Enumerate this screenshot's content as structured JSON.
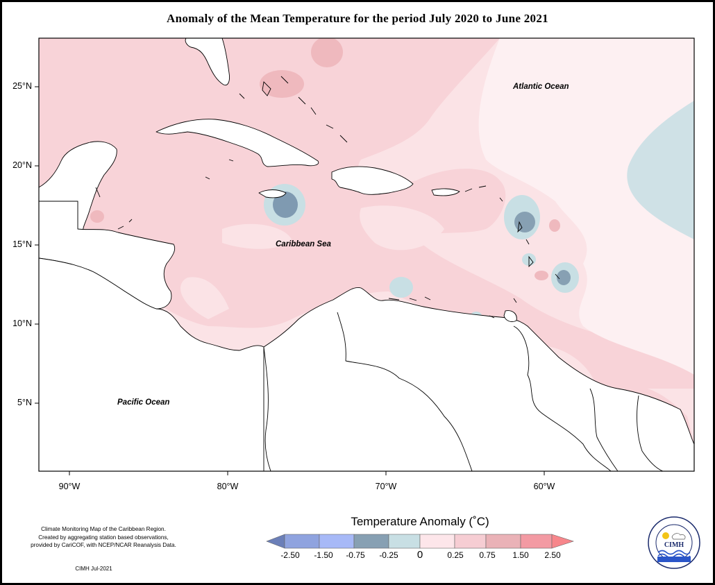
{
  "title": "Anomaly of the Mean Temperature for the period July 2020 to June 2021",
  "map": {
    "latitude_labels": [
      "25°N",
      "20°N",
      "15°N",
      "10°N",
      "5°N"
    ],
    "longitude_labels": [
      "90°W",
      "80°W",
      "70°W",
      "60°W"
    ],
    "regions": {
      "atlantic": "Atlantic Ocean",
      "caribbean": "Caribbean Sea",
      "pacific": "Pacific Ocean"
    }
  },
  "legend": {
    "title": "Temperature Anomaly (˚C)",
    "tick_labels": [
      "-2.50",
      "-1.50",
      "-0.75",
      "-0.25",
      "0",
      "0.25",
      "0.75",
      "1.50",
      "2.50"
    ],
    "colors": [
      "#6b7fb8",
      "#8fa3df",
      "#a7b9f7",
      "#87a0b3",
      "#c8dfe4",
      "#fde6ea",
      "#f6cdd3",
      "#eab2b7",
      "#f39aa3",
      "#f7868b"
    ]
  },
  "footnote": {
    "lines": [
      "Climate Monitoring Map of the Caribbean Region.",
      "Created by aggregating station based observations,",
      "provided by CariCOF, with NCEP/NCAR Reanalysis Data."
    ],
    "credit": "CIMH Jul-2021"
  },
  "logo": {
    "text": "CIMH",
    "ring_text": "Caribbean Institute for Meteorology and Hydrology"
  }
}
